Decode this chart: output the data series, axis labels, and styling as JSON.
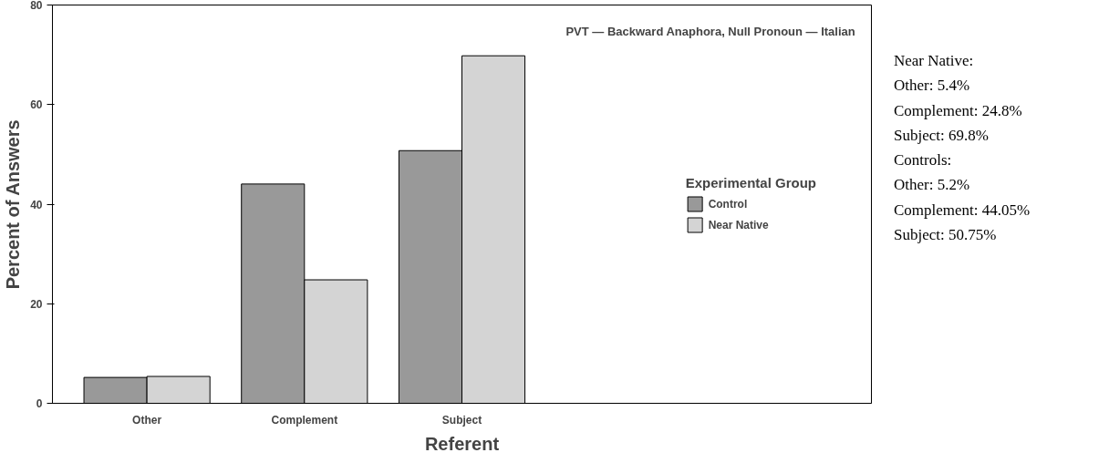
{
  "chart_data": {
    "type": "bar",
    "xlabel": "Referent",
    "ylabel": "Percent of Answers",
    "legend_title": "Experimental Group",
    "categories": [
      "Other",
      "Complement",
      "Subject"
    ],
    "series": [
      {
        "name": "Control",
        "color": "#999999",
        "values": [
          5.2,
          44.05,
          50.75
        ]
      },
      {
        "name": "Near Native",
        "color": "#d4d4d4",
        "values": [
          5.4,
          24.8,
          69.8
        ]
      }
    ],
    "ylim": [
      0,
      80
    ],
    "yticks": [
      0,
      20,
      40,
      60,
      80
    ],
    "grid": false,
    "legend": "right",
    "annotations": [
      "PVT — Backward Anaphora, Null Pronoun — Italian",
      "Near Native:",
      "Other: 5.4%",
      "Complement: 24.8%",
      "Subject: 69.8%",
      "Controls:",
      "Other: 5.2%",
      "Complement: 44.05%",
      "Subject: 50.75%"
    ]
  }
}
